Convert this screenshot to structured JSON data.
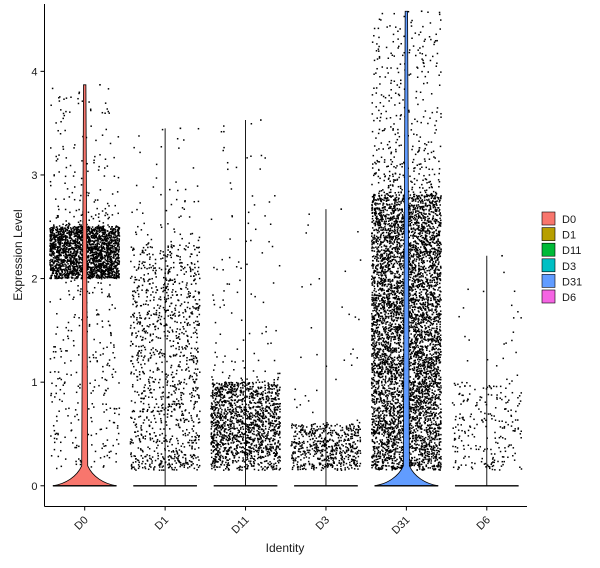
{
  "chart_data": {
    "type": "violin",
    "xlabel": "Identity",
    "ylabel": "Expression Level",
    "ylim": [
      -0.2,
      4.65
    ],
    "yticks": [
      0,
      1,
      2,
      3,
      4
    ],
    "grid": false,
    "legend_position": "right",
    "categories": [
      "D0",
      "D1",
      "D11",
      "D3",
      "D31",
      "D6"
    ],
    "series": [
      {
        "name": "D0",
        "color": "#F8766D",
        "max": 3.87,
        "n_points": 2600,
        "band": [
          2.0,
          2.5
        ],
        "violin_peak_width": 0.48
      },
      {
        "name": "D1",
        "color": "#B79F00",
        "max": 3.45,
        "n_points": 1200,
        "band": [
          0.3,
          2.3
        ],
        "violin_peak_width": 0.0
      },
      {
        "name": "D11",
        "color": "#00BA38",
        "max": 3.53,
        "n_points": 1600,
        "band": [
          0.3,
          1.0
        ],
        "violin_peak_width": 0.0
      },
      {
        "name": "D3",
        "color": "#00BFC4",
        "max": 2.67,
        "n_points": 600,
        "band": [
          0.2,
          0.6
        ],
        "violin_peak_width": 0.0
      },
      {
        "name": "D31",
        "color": "#619CFF",
        "max": 4.58,
        "n_points": 6000,
        "band": [
          0.5,
          2.8
        ],
        "violin_peak_width": 0.48
      },
      {
        "name": "D6",
        "color": "#F564E3",
        "max": 2.22,
        "n_points": 250,
        "band": [
          0.2,
          1.0
        ],
        "violin_peak_width": 0.0
      }
    ]
  }
}
